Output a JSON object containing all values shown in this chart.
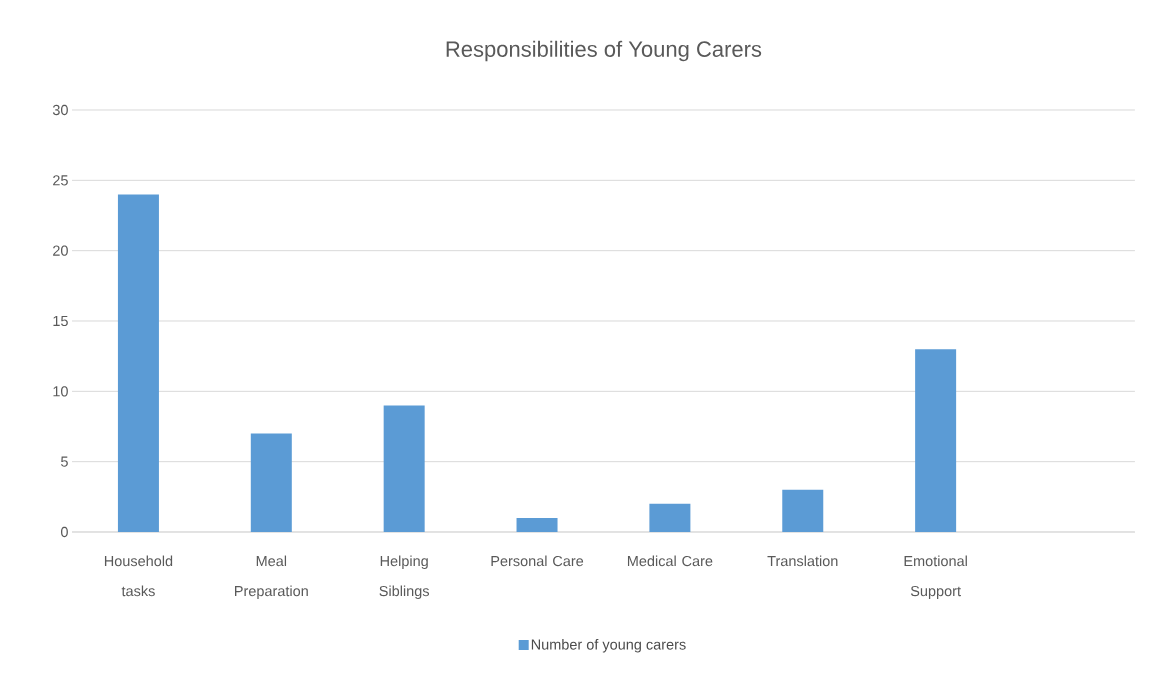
{
  "chart_data": {
    "type": "bar",
    "title": "Responsibilities of Young Carers",
    "categories": [
      "Household tasks",
      "Meal Preparation",
      "Helping Siblings",
      "Personal Care",
      "Medical Care",
      "Translation",
      "Emotional Support",
      null
    ],
    "series": [
      {
        "name": "Number of young carers",
        "color": "#5b9bd5",
        "values": [
          24,
          7,
          9,
          1,
          2,
          3,
          13,
          null
        ]
      }
    ],
    "ylim": [
      0,
      30
    ],
    "yticks": [
      0,
      5,
      10,
      15,
      20,
      25,
      30
    ],
    "grid": "y",
    "legend": "bottom"
  }
}
